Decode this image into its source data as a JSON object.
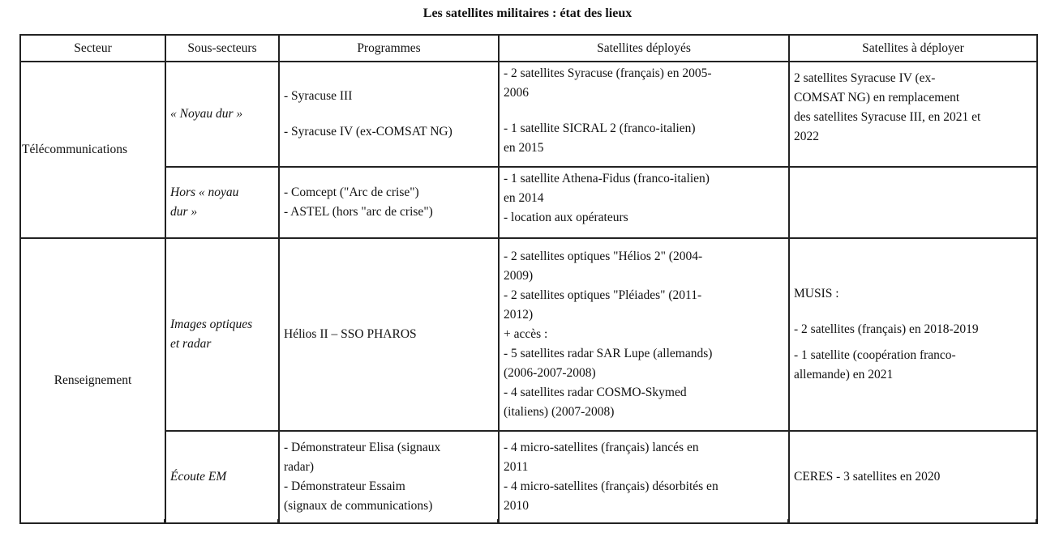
{
  "title": "Les satellites militaires : état des lieux",
  "headers": [
    "Secteur",
    "Sous-secteurs",
    "Programmes",
    "Satellites déployés",
    "Satellites à déployer"
  ],
  "rows": [
    {
      "secteur": "Télécommunications",
      "sous_secteur": "« Noyau dur »",
      "programmes": [
        "- Syracuse III",
        "- Syracuse IV (ex-COMSAT NG)"
      ],
      "deployes": [
        "- 2 satellites Syracuse (français) en 2005-",
        "2006",
        "- 1 satellite SICRAL 2 (franco-italien)",
        "en 2015"
      ],
      "a_deployer": [
        "2 satellites Syracuse IV (ex-",
        "COMSAT NG) en remplacement",
        "des satellites Syracuse III, en 2021 et",
        "2022"
      ]
    },
    {
      "sous_secteur": [
        "Hors « noyau",
        "dur »"
      ],
      "programmes": [
        "- Comcept (\"Arc de crise\")",
        "- ASTEL (hors \"arc de crise\")"
      ],
      "deployes": [
        "- 1 satellite Athena-Fidus (franco-italien)",
        "en 2014",
        "- location aux opérateurs"
      ],
      "a_deployer": []
    },
    {
      "secteur": "Renseignement",
      "sous_secteur": [
        "Images optiques",
        "et radar"
      ],
      "programmes": [
        "Hélios II – SSO PHAROS"
      ],
      "deployes": [
        "- 2 satellites optiques \"Hélios 2\" (2004-",
        "2009)",
        "- 2 satellites optiques \"Pléiades\" (2011-",
        "2012)",
        "+ accès :",
        "- 5 satellites radar SAR Lupe (allemands)",
        "(2006-2007-2008)",
        "- 4 satellites radar COSMO-Skymed",
        "(italiens) (2007-2008)"
      ],
      "a_deployer": [
        "MUSIS :",
        "- 2 satellites (français) en 2018-2019",
        "- 1 satellite (coopération franco-",
        "allemande) en 2021"
      ]
    },
    {
      "sous_secteur": "Écoute EM",
      "programmes": [
        "- Démonstrateur Elisa (signaux",
        "radar)",
        "- Démonstrateur Essaim",
        "(signaux de communications)"
      ],
      "deployes": [
        "- 4 micro-satellites (français) lancés en",
        "2011",
        "- 4 micro-satellites (français) désorbités en",
        "2010"
      ],
      "a_deployer": [
        "CERES - 3 satellites en 2020"
      ]
    }
  ]
}
